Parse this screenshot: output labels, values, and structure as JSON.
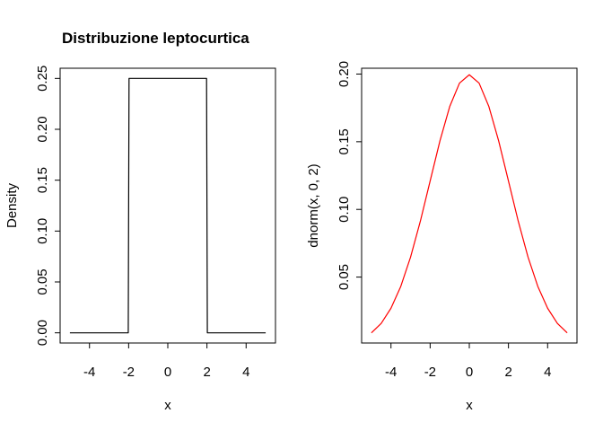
{
  "chart_data": [
    {
      "type": "line",
      "title": "Distribuzione leptocurtica",
      "xlabel": "x",
      "ylabel": "Density",
      "xlim": [
        -5.5,
        5.5
      ],
      "ylim": [
        -0.01,
        0.26
      ],
      "xticks": [
        -4,
        -2,
        0,
        2,
        4
      ],
      "xtick_labels": [
        "-4",
        "-2",
        "0",
        "2",
        "4"
      ],
      "yticks": [
        0.0,
        0.05,
        0.1,
        0.15,
        0.2,
        0.25
      ],
      "ytick_labels": [
        "0.00",
        "0.05",
        "0.10",
        "0.15",
        "0.20",
        "0.25"
      ],
      "grid": false,
      "series": [
        {
          "color": "#000000",
          "x": [
            -5,
            -2.02,
            -1.98,
            1.98,
            2.02,
            5
          ],
          "y": [
            0,
            0,
            0.25,
            0.25,
            0,
            0
          ]
        }
      ]
    },
    {
      "type": "line",
      "title": "",
      "xlabel": "x",
      "ylabel": "dnorm(x, 0, 2)",
      "xlim": [
        -5.5,
        5.5
      ],
      "ylim": [
        0.0013,
        0.2043
      ],
      "xticks": [
        -4,
        -2,
        0,
        2,
        4
      ],
      "xtick_labels": [
        "-4",
        "-2",
        "0",
        "2",
        "4"
      ],
      "yticks": [
        0.05,
        0.1,
        0.15,
        0.2
      ],
      "ytick_labels": [
        "0.05",
        "0.10",
        "0.15",
        "0.20"
      ],
      "grid": false,
      "series": [
        {
          "color": "#ff0000",
          "x": [
            -5,
            -4.5,
            -4,
            -3.5,
            -3,
            -2.5,
            -2,
            -1.5,
            -1,
            -0.5,
            0,
            0.5,
            1,
            1.5,
            2,
            2.5,
            3,
            3.5,
            4,
            4.5,
            5
          ],
          "y": [
            0.0088,
            0.0158,
            0.027,
            0.0431,
            0.0648,
            0.0913,
            0.121,
            0.1506,
            0.176,
            0.1933,
            0.1995,
            0.1933,
            0.176,
            0.1506,
            0.121,
            0.0913,
            0.0648,
            0.0431,
            0.027,
            0.0158,
            0.0088
          ]
        }
      ]
    }
  ]
}
